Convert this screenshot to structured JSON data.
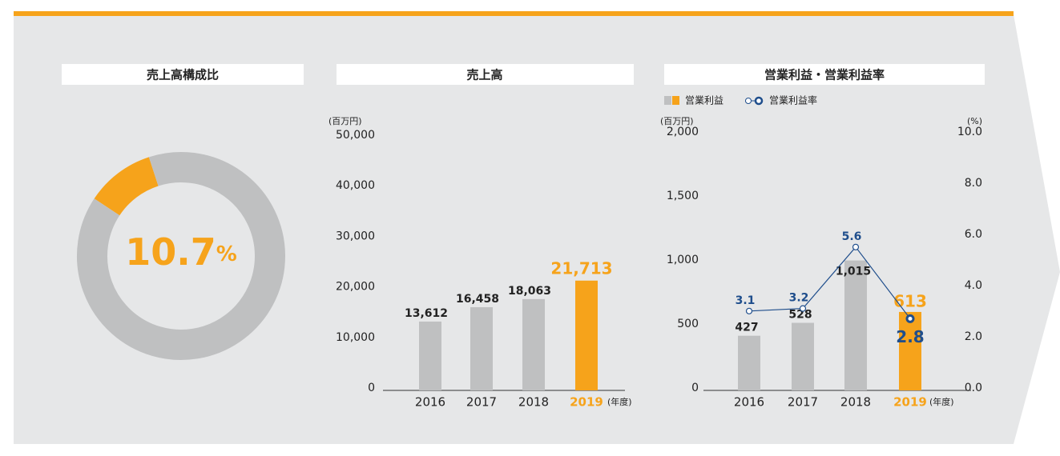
{
  "chart_data": [
    {
      "type": "donut",
      "title": "売上高構成比",
      "categories": [
        null,
        null
      ],
      "values": [
        10.7,
        89.3
      ],
      "colors": [
        "#f6a31b",
        "#bfc0c1"
      ],
      "unit": "%"
    },
    {
      "type": "bar",
      "title": "売上高",
      "y_label": "(百万円)",
      "x_unit": "(年度)",
      "categories": [
        "2016",
        "2017",
        "2018",
        "2019"
      ],
      "values": [
        13612,
        16458,
        18063,
        21713
      ],
      "value_labels": [
        "13,612",
        "16,458",
        "18,063",
        "21,713"
      ],
      "colors": [
        "#bfc0c1",
        "#bfc0c1",
        "#bfc0c1",
        "#f6a31b"
      ],
      "highlight_color": "#f6a31b",
      "ylim": [
        0,
        50000
      ],
      "yticks": [
        0,
        {
          "value": 10000,
          "label": "10,000"
        },
        {
          "value": 20000,
          "label": "20,000"
        },
        {
          "value": 30000,
          "label": "30,000"
        },
        {
          "value": 40000,
          "label": "40,000"
        },
        {
          "value": 50000,
          "label": "50,000"
        }
      ]
    },
    {
      "type": "combo",
      "title": "営業利益・営業利益率",
      "y_label": "(百万円)",
      "y2_label": "(%)",
      "x_unit": "(年度)",
      "categories": [
        "2016",
        "2017",
        "2018",
        "2019"
      ],
      "series": [
        {
          "name": "営業利益",
          "kind": "bar",
          "values": [
            427,
            528,
            1015,
            613
          ],
          "value_labels": [
            "427",
            "528",
            "1,015",
            "613"
          ],
          "colors": [
            "#bfc0c1",
            "#bfc0c1",
            "#bfc0c1",
            "#f6a31b"
          ]
        },
        {
          "name": "営業利益率",
          "kind": "line",
          "axis": "y2",
          "color": "#1f4e8c",
          "values": [
            3.1,
            3.2,
            5.6,
            2.8
          ]
        }
      ],
      "highlight_color": "#f6a31b",
      "ylim": [
        0,
        2000
      ],
      "yticks": [
        0,
        500,
        {
          "value": 1000,
          "label": "1,000"
        },
        {
          "value": 1500,
          "label": "1,500"
        },
        {
          "value": 2000,
          "label": "2,000"
        }
      ],
      "y2lim": [
        0,
        10
      ],
      "y2ticks": [
        {
          "value": 0,
          "label": "0.0"
        },
        {
          "value": 2,
          "label": "2.0"
        },
        {
          "value": 4,
          "label": "4.0"
        },
        {
          "value": 6,
          "label": "6.0"
        },
        {
          "value": 8,
          "label": "8.0"
        },
        {
          "value": 10,
          "label": "10.0"
        }
      ]
    }
  ]
}
